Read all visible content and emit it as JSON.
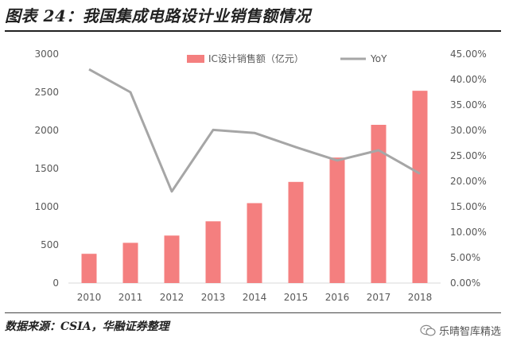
{
  "title": "图表 24：我国集成电路设计业销售额情况",
  "source": "数据来源：CSIA，华融证券整理",
  "watermark": "乐晴智库精选",
  "colors": {
    "bar": "#f47f7f",
    "line": "#a6a6a6",
    "axis_text": "#595959",
    "axis_line": "#d9d9d9"
  },
  "chart_data": {
    "type": "bar",
    "title": "",
    "categories": [
      "2010",
      "2011",
      "2012",
      "2013",
      "2014",
      "2015",
      "2016",
      "2017",
      "2018"
    ],
    "series": [
      {
        "name": "IC设计销售额（亿元）",
        "type": "bar",
        "axis": "left",
        "values": [
          383,
          527,
          622,
          809,
          1047,
          1325,
          1644,
          2073,
          2519
        ]
      },
      {
        "name": "YoY",
        "type": "line",
        "axis": "right",
        "values": [
          0.42,
          0.375,
          0.18,
          0.301,
          0.295,
          0.267,
          0.241,
          0.261,
          0.215
        ]
      }
    ],
    "y_left": {
      "ylim": [
        0,
        3000
      ],
      "ticks": [
        0,
        500,
        1000,
        1500,
        2000,
        2500,
        3000
      ]
    },
    "y_right": {
      "ylim": [
        0,
        0.45
      ],
      "ticks": [
        "0.00%",
        "5.00%",
        "10.00%",
        "15.00%",
        "20.00%",
        "25.00%",
        "30.00%",
        "35.00%",
        "40.00%",
        "45.00%"
      ]
    },
    "xlabel": "",
    "ylabel": "",
    "legend_position": "top",
    "grid": false
  }
}
